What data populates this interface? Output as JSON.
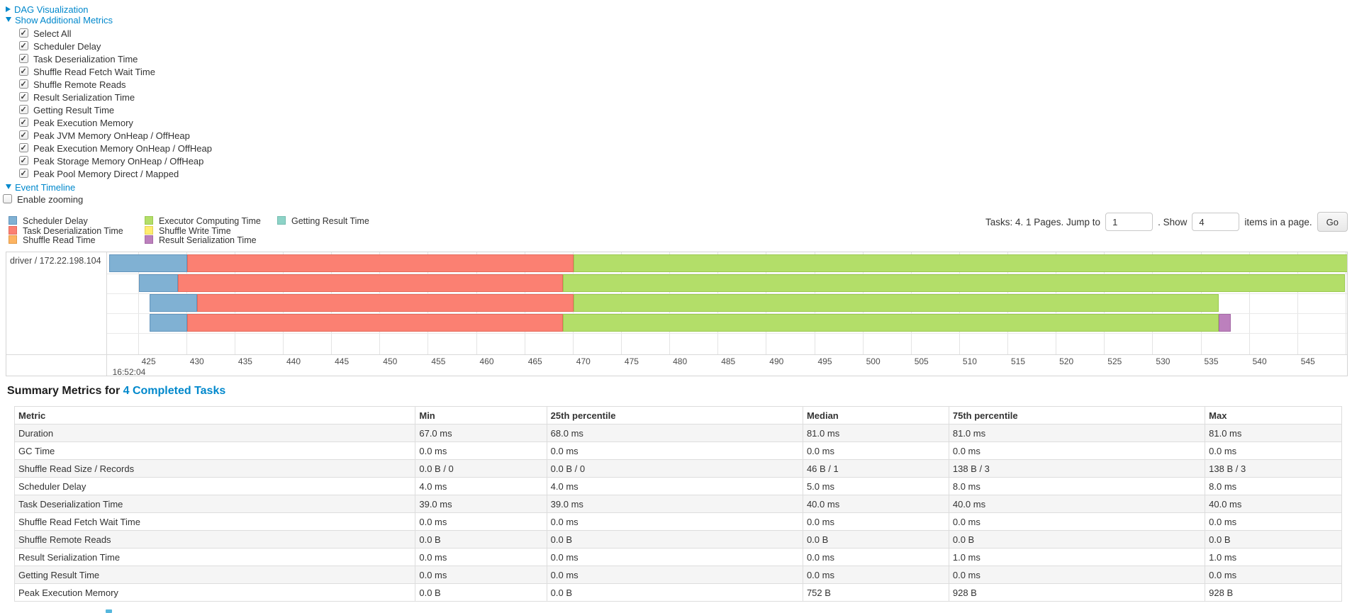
{
  "controls": {
    "dag_label": "DAG Visualization",
    "metrics_label": "Show Additional Metrics",
    "checkboxes": [
      {
        "label": "Select All",
        "checked": true
      },
      {
        "label": "Scheduler Delay",
        "checked": true
      },
      {
        "label": "Task Deserialization Time",
        "checked": true
      },
      {
        "label": "Shuffle Read Fetch Wait Time",
        "checked": true
      },
      {
        "label": "Shuffle Remote Reads",
        "checked": true
      },
      {
        "label": "Result Serialization Time",
        "checked": true
      },
      {
        "label": "Getting Result Time",
        "checked": true
      },
      {
        "label": "Peak Execution Memory",
        "checked": true
      },
      {
        "label": "Peak JVM Memory OnHeap / OffHeap",
        "checked": true
      },
      {
        "label": "Peak Execution Memory OnHeap / OffHeap",
        "checked": true
      },
      {
        "label": "Peak Storage Memory OnHeap / OffHeap",
        "checked": true
      },
      {
        "label": "Peak Pool Memory Direct / Mapped",
        "checked": true
      }
    ],
    "event_timeline_label": "Event Timeline",
    "enable_zooming": {
      "label": "Enable zooming",
      "checked": false
    }
  },
  "colors": {
    "link": "#0088cc",
    "kinds": {
      "scheduler_delay": {
        "fill": "#80B1D3",
        "border": "#6294BC"
      },
      "task_deserialization": {
        "fill": "#FB8072",
        "border": "#E56A5C"
      },
      "shuffle_read": {
        "fill": "#FDB462",
        "border": "#E29A48"
      },
      "executor_computing": {
        "fill": "#B3DE69",
        "border": "#9BC94F"
      },
      "shuffle_write": {
        "fill": "#FFED6F",
        "border": "#E2D055"
      },
      "result_serialization": {
        "fill": "#BC80BD",
        "border": "#A569A6"
      },
      "getting_result": {
        "fill": "#8DD3C7",
        "border": "#74BDB0"
      }
    }
  },
  "legend_columns": [
    [
      {
        "label": "Scheduler Delay",
        "kind": "scheduler_delay"
      },
      {
        "label": "Task Deserialization Time",
        "kind": "task_deserialization"
      },
      {
        "label": "Shuffle Read Time",
        "kind": "shuffle_read"
      }
    ],
    [
      {
        "label": "Executor Computing Time",
        "kind": "executor_computing"
      },
      {
        "label": "Shuffle Write Time",
        "kind": "shuffle_write"
      },
      {
        "label": "Result Serialization Time",
        "kind": "result_serialization"
      }
    ],
    [
      {
        "label": "Getting Result Time",
        "kind": "getting_result"
      }
    ]
  ],
  "pagination": {
    "prefix": "Tasks: 4. 1 Pages. Jump to",
    "jump_value": "1",
    "mid": ". Show",
    "show_value": "4",
    "suffix": "items in a page.",
    "go_label": "Go"
  },
  "timeline": {
    "group_label": "driver / 172.22.198.104",
    "axis": {
      "start": 421.8,
      "end": 550.3,
      "tick_start": 425,
      "tick_end": 550,
      "tick_step": 5,
      "time_label": "16:52:04",
      "time_label_tick": 425
    },
    "tasks": [
      {
        "segments": [
          {
            "kind": "scheduler_delay",
            "start": 422.0,
            "end": 430.1
          },
          {
            "kind": "task_deserialization",
            "start": 430.1,
            "end": 470.1
          },
          {
            "kind": "executor_computing",
            "start": 470.1,
            "end": 550.8
          }
        ]
      },
      {
        "segments": [
          {
            "kind": "scheduler_delay",
            "start": 425.1,
            "end": 429.1
          },
          {
            "kind": "task_deserialization",
            "start": 429.1,
            "end": 469.0
          },
          {
            "kind": "executor_computing",
            "start": 469.0,
            "end": 549.9
          }
        ]
      },
      {
        "segments": [
          {
            "kind": "scheduler_delay",
            "start": 426.2,
            "end": 431.1
          },
          {
            "kind": "task_deserialization",
            "start": 431.1,
            "end": 470.1
          },
          {
            "kind": "executor_computing",
            "start": 470.1,
            "end": 536.9
          }
        ]
      },
      {
        "segments": [
          {
            "kind": "scheduler_delay",
            "start": 426.2,
            "end": 430.1
          },
          {
            "kind": "task_deserialization",
            "start": 430.1,
            "end": 469.0
          },
          {
            "kind": "executor_computing",
            "start": 469.0,
            "end": 536.9
          },
          {
            "kind": "result_serialization",
            "start": 536.9,
            "end": 538.1
          }
        ]
      }
    ]
  },
  "summary": {
    "heading_prefix": "Summary Metrics for ",
    "heading_link": "4 Completed Tasks",
    "columns": [
      "Metric",
      "Min",
      "25th percentile",
      "Median",
      "75th percentile",
      "Max"
    ],
    "column_widths": [
      "30.2%",
      "9.9%",
      "19.3%",
      "11.0%",
      "19.3%",
      "10.3%"
    ],
    "rows": [
      [
        "Duration",
        "67.0 ms",
        "68.0 ms",
        "81.0 ms",
        "81.0 ms",
        "81.0 ms"
      ],
      [
        "GC Time",
        "0.0 ms",
        "0.0 ms",
        "0.0 ms",
        "0.0 ms",
        "0.0 ms"
      ],
      [
        "Shuffle Read Size / Records",
        "0.0 B / 0",
        "0.0 B / 0",
        "46 B / 1",
        "138 B / 3",
        "138 B / 3"
      ],
      [
        "Scheduler Delay",
        "4.0 ms",
        "4.0 ms",
        "5.0 ms",
        "8.0 ms",
        "8.0 ms"
      ],
      [
        "Task Deserialization Time",
        "39.0 ms",
        "39.0 ms",
        "40.0 ms",
        "40.0 ms",
        "40.0 ms"
      ],
      [
        "Shuffle Read Fetch Wait Time",
        "0.0 ms",
        "0.0 ms",
        "0.0 ms",
        "0.0 ms",
        "0.0 ms"
      ],
      [
        "Shuffle Remote Reads",
        "0.0 B",
        "0.0 B",
        "0.0 B",
        "0.0 B",
        "0.0 B"
      ],
      [
        "Result Serialization Time",
        "0.0 ms",
        "0.0 ms",
        "0.0 ms",
        "1.0 ms",
        "1.0 ms"
      ],
      [
        "Getting Result Time",
        "0.0 ms",
        "0.0 ms",
        "0.0 ms",
        "0.0 ms",
        "0.0 ms"
      ],
      [
        "Peak Execution Memory",
        "0.0 B",
        "0.0 B",
        "752 B",
        "928 B",
        "928 B"
      ]
    ]
  }
}
